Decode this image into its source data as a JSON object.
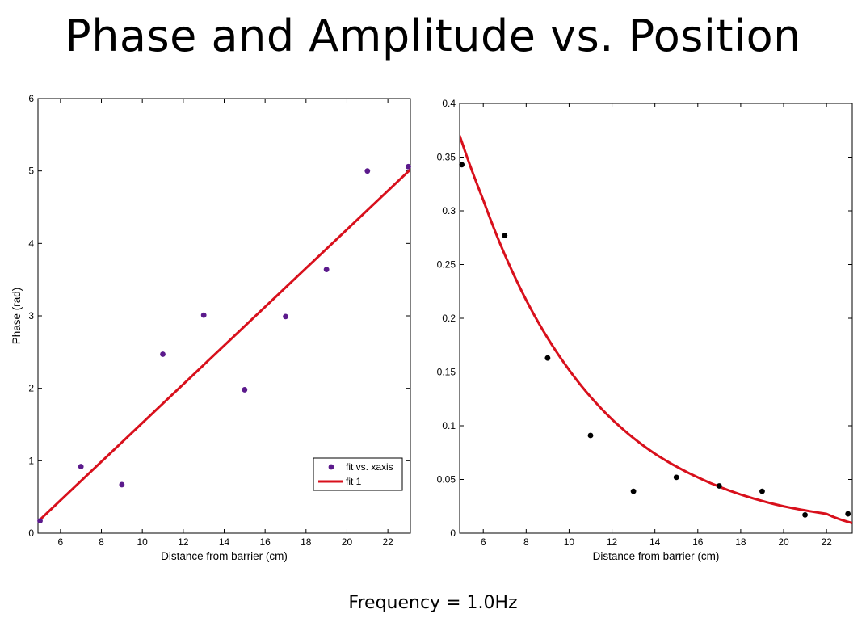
{
  "slide": {
    "title": "Phase and Amplitude vs. Position",
    "caption": "Frequency = 1.0Hz"
  },
  "colors": {
    "fit_line": "#d8101c",
    "phase_points": "#5b1a8c",
    "amplitude_points": "#000000",
    "axes": "#000000"
  },
  "chart_data": [
    {
      "type": "scatter",
      "title": "",
      "xlabel": "Distance from barrier (cm)",
      "ylabel": "Phase (rad)",
      "xlim": [
        4.9,
        23.1
      ],
      "ylim": [
        0,
        6
      ],
      "xticks": [
        6,
        8,
        10,
        12,
        14,
        16,
        18,
        20,
        22
      ],
      "yticks": [
        0,
        1,
        2,
        3,
        4,
        5,
        6
      ],
      "x_tick_labels": [
        "6",
        "8",
        "10",
        "12",
        "14",
        "16",
        "18",
        "20",
        "22"
      ],
      "y_tick_labels": [
        "0",
        "1",
        "2",
        "3",
        "4",
        "5",
        "6"
      ],
      "grid": false,
      "legend": {
        "placement": "bottom-right",
        "entries": [
          "fit vs. xaxis",
          "fit 1"
        ]
      },
      "series": [
        {
          "name": "fit vs. xaxis",
          "kind": "points",
          "x": [
            5,
            7,
            9,
            11,
            13,
            15,
            17,
            19,
            21,
            23
          ],
          "y": [
            0.17,
            0.92,
            0.67,
            2.47,
            3.01,
            1.98,
            2.99,
            3.64,
            5.0,
            5.06
          ]
        },
        {
          "name": "fit 1",
          "kind": "line",
          "x": [
            4.9,
            23.1
          ],
          "y": [
            0.16,
            5.02
          ]
        }
      ]
    },
    {
      "type": "scatter",
      "title": "",
      "xlabel": "Distance from barrier (cm)",
      "ylabel": "",
      "xlim": [
        4.9,
        23.2
      ],
      "ylim": [
        0,
        0.4
      ],
      "xticks": [
        6,
        8,
        10,
        12,
        14,
        16,
        18,
        20,
        22
      ],
      "yticks": [
        0,
        0.05,
        0.1,
        0.15,
        0.2,
        0.25,
        0.3,
        0.35,
        0.4
      ],
      "x_tick_labels": [
        "6",
        "8",
        "10",
        "12",
        "14",
        "16",
        "18",
        "20",
        "22"
      ],
      "y_tick_labels": [
        "0",
        "0.05",
        "0.1",
        "0.15",
        "0.2",
        "0.25",
        "0.3",
        "0.35",
        "0.4"
      ],
      "grid": false,
      "series": [
        {
          "kind": "points",
          "x": [
            5,
            7,
            9,
            11,
            13,
            15,
            17,
            19,
            21,
            23
          ],
          "y": [
            0.343,
            0.277,
            0.163,
            0.091,
            0.039,
            0.052,
            0.044,
            0.039,
            0.017,
            0.018
          ]
        },
        {
          "kind": "curve",
          "model": "exponential decay",
          "x": [
            4.9,
            6,
            8,
            10,
            12,
            14,
            16,
            18,
            20,
            22,
            23.2
          ],
          "y": [
            0.37,
            0.31,
            0.217,
            0.152,
            0.106,
            0.074,
            0.052,
            0.036,
            0.025,
            0.018,
            0.0095
          ]
        }
      ]
    }
  ]
}
